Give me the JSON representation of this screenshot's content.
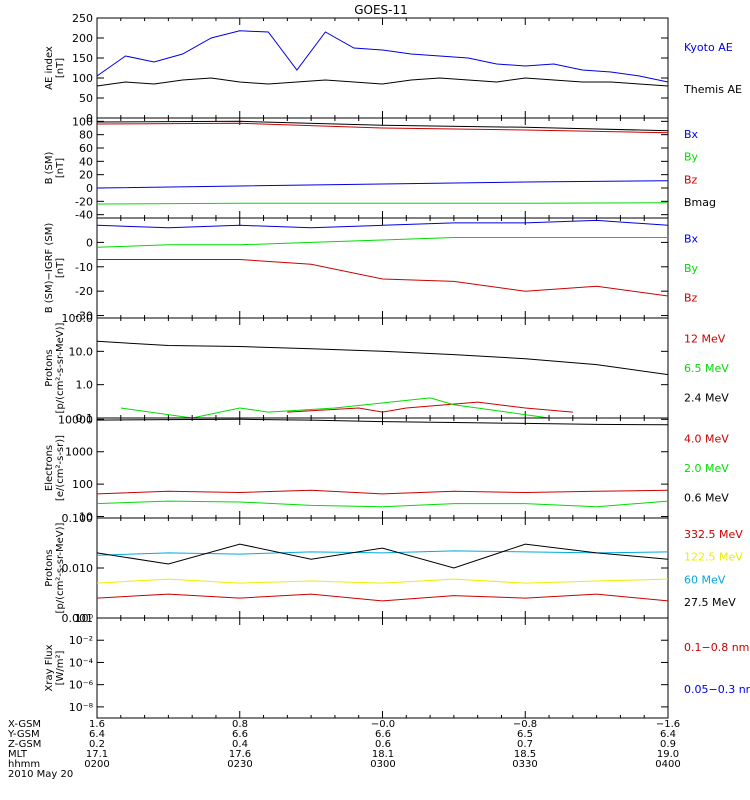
{
  "title": "GOES-11",
  "colors": {
    "blue": "#0000e0",
    "green": "#00dd00",
    "red": "#cc0000",
    "black": "#000000",
    "cyan": "#00aadd",
    "yellow": "#eeee00"
  },
  "x_range": [
    "02:00",
    "04:00"
  ],
  "x_tick_labels": [
    "0200",
    "0230",
    "0300",
    "0330",
    "0400"
  ],
  "orbit_table": {
    "rows": [
      {
        "label": "X-GSM",
        "values": [
          "1.6",
          "0.8",
          "−0.0",
          "−0.8",
          "−1.6"
        ]
      },
      {
        "label": "Y-GSM",
        "values": [
          "6.4",
          "6.6",
          "6.6",
          "6.5",
          "6.4"
        ]
      },
      {
        "label": "Z-GSM",
        "values": [
          "0.2",
          "0.4",
          "0.6",
          "0.7",
          "0.9"
        ]
      },
      {
        "label": "MLT",
        "values": [
          "17.1",
          "17.6",
          "18.1",
          "18.5",
          "19.0"
        ]
      },
      {
        "label": "hhmm",
        "values": [
          "0200",
          "0230",
          "0300",
          "0330",
          "0400"
        ]
      }
    ],
    "date": "2010 May 20"
  },
  "chart_data": [
    {
      "type": "line",
      "ylabel": [
        "AE index",
        "[nT]"
      ],
      "ylim": [
        0,
        250
      ],
      "yticks": [
        0,
        50,
        100,
        150,
        200,
        250
      ],
      "series": [
        {
          "name": "Kyoto AE",
          "color": "#0000e0",
          "x": [
            "02:00",
            "02:06",
            "02:12",
            "02:18",
            "02:24",
            "02:30",
            "02:36",
            "02:42",
            "02:48",
            "02:54",
            "03:00",
            "03:06",
            "03:12",
            "03:18",
            "03:24",
            "03:30",
            "03:36",
            "03:42",
            "03:48",
            "03:54",
            "04:00"
          ],
          "values": [
            105,
            155,
            140,
            160,
            200,
            218,
            215,
            120,
            215,
            175,
            170,
            160,
            155,
            150,
            135,
            130,
            135,
            120,
            115,
            105,
            90
          ]
        },
        {
          "name": "Themis AE",
          "color": "#000000",
          "x": [
            "02:00",
            "02:06",
            "02:12",
            "02:18",
            "02:24",
            "02:30",
            "02:36",
            "02:42",
            "02:48",
            "02:54",
            "03:00",
            "03:06",
            "03:12",
            "03:18",
            "03:24",
            "03:30",
            "03:36",
            "03:42",
            "03:48",
            "03:54",
            "04:00"
          ],
          "values": [
            80,
            90,
            85,
            95,
            100,
            90,
            85,
            90,
            95,
            90,
            85,
            95,
            100,
            95,
            90,
            100,
            95,
            90,
            90,
            85,
            80
          ]
        }
      ]
    },
    {
      "type": "line",
      "ylabel": [
        "B (SM)",
        "[nT]"
      ],
      "ylim": [
        -45,
        105
      ],
      "yticks": [
        -40,
        -20,
        0,
        20,
        40,
        60,
        80,
        100
      ],
      "series": [
        {
          "name": "Bx",
          "color": "#0000e0",
          "x": [
            "02:00",
            "02:30",
            "03:00",
            "03:30",
            "04:00"
          ],
          "values": [
            0,
            3,
            6,
            9,
            11
          ]
        },
        {
          "name": "By",
          "color": "#00dd00",
          "x": [
            "02:00",
            "02:30",
            "03:00",
            "03:30",
            "04:00"
          ],
          "values": [
            -24,
            -23,
            -23,
            -23,
            -22
          ]
        },
        {
          "name": "Bz",
          "color": "#cc0000",
          "x": [
            "02:00",
            "02:30",
            "03:00",
            "03:30",
            "04:00"
          ],
          "values": [
            96,
            97,
            90,
            87,
            83
          ]
        },
        {
          "name": "Bmag",
          "color": "#000000",
          "x": [
            "02:00",
            "02:30",
            "03:00",
            "03:30",
            "04:00"
          ],
          "values": [
            99,
            100,
            94,
            91,
            86
          ]
        }
      ]
    },
    {
      "type": "line",
      "ylabel": [
        "B (SM)−IGRF (SM)",
        "[nT]"
      ],
      "ylim": [
        -31,
        10
      ],
      "yticks": [
        -30,
        -20,
        -10,
        0
      ],
      "series": [
        {
          "name": "Bx",
          "color": "#0000e0",
          "x": [
            "02:00",
            "02:15",
            "02:30",
            "02:45",
            "03:00",
            "03:15",
            "03:30",
            "03:45",
            "04:00"
          ],
          "values": [
            7,
            6,
            7,
            6,
            7,
            8,
            8,
            9,
            7
          ]
        },
        {
          "name": "By",
          "color": "#00dd00",
          "x": [
            "02:00",
            "02:15",
            "02:30",
            "02:45",
            "03:00",
            "03:15",
            "03:30",
            "03:45",
            "04:00"
          ],
          "values": [
            -2,
            -1,
            -1,
            0,
            1,
            2,
            2,
            2,
            2
          ]
        },
        {
          "name": "Bz",
          "color": "#cc0000",
          "x": [
            "02:00",
            "02:15",
            "02:30",
            "02:45",
            "03:00",
            "03:15",
            "03:30",
            "03:45",
            "04:00"
          ],
          "values": [
            -7,
            -7,
            -7,
            -9,
            -15,
            -16,
            -20,
            -18,
            -22
          ]
        }
      ]
    },
    {
      "type": "line",
      "scale": "log",
      "ylabel": [
        "Protons",
        "[p/(cm²-s-sr-MeV)]"
      ],
      "ylim": [
        0.1,
        100
      ],
      "yticks": [
        0.1,
        1.0,
        10.0,
        100.0
      ],
      "ytick_labels": [
        "0.1",
        "1.0",
        "10.0",
        "100.0"
      ],
      "series": [
        {
          "name": "12 MeV",
          "color": "#cc0000",
          "x": [
            "02:40",
            "02:55",
            "03:00",
            "03:05",
            "03:20",
            "03:30",
            "03:40"
          ],
          "values": [
            0.15,
            0.2,
            0.15,
            0.2,
            0.3,
            0.2,
            0.15
          ]
        },
        {
          "name": "6.5 MeV",
          "color": "#00dd00",
          "x": [
            "02:05",
            "02:20",
            "02:30",
            "02:36",
            "02:50",
            "03:10",
            "03:15",
            "03:35"
          ],
          "values": [
            0.2,
            0.1,
            0.2,
            0.15,
            0.2,
            0.4,
            0.25,
            0.1
          ]
        },
        {
          "name": "2.4 MeV",
          "color": "#000000",
          "x": [
            "02:00",
            "02:15",
            "02:30",
            "02:45",
            "03:00",
            "03:15",
            "03:30",
            "03:45",
            "04:00"
          ],
          "values": [
            20,
            15,
            14,
            12,
            10,
            8,
            6,
            4,
            2
          ]
        }
      ]
    },
    {
      "type": "line",
      "scale": "log",
      "ylabel": [
        "Electrons",
        "[e/(cm²-s-sr)]"
      ],
      "ylim": [
        9,
        11000
      ],
      "yticks": [
        10,
        100,
        1000,
        10000
      ],
      "ytick_labels": [
        "10",
        "100",
        "1000",
        "10000"
      ],
      "series": [
        {
          "name": "4.0 MeV",
          "color": "#cc0000",
          "x": [
            "02:00",
            "02:15",
            "02:30",
            "02:45",
            "03:00",
            "03:15",
            "03:30",
            "03:45",
            "04:00"
          ],
          "values": [
            50,
            60,
            55,
            65,
            50,
            60,
            55,
            60,
            65
          ]
        },
        {
          "name": "2.0 MeV",
          "color": "#00dd00",
          "x": [
            "02:00",
            "02:15",
            "02:30",
            "02:45",
            "03:00",
            "03:15",
            "03:30",
            "03:45",
            "04:00"
          ],
          "values": [
            25,
            30,
            28,
            22,
            20,
            25,
            25,
            20,
            30
          ]
        },
        {
          "name": "0.6 MeV",
          "color": "#000000",
          "x": [
            "02:00",
            "02:15",
            "02:30",
            "02:45",
            "03:00",
            "03:15",
            "03:30",
            "03:45",
            "04:00"
          ],
          "values": [
            9500,
            9800,
            10000,
            9500,
            8500,
            8000,
            7500,
            7000,
            6800
          ]
        }
      ]
    },
    {
      "type": "line",
      "scale": "log",
      "ylabel": [
        "Protons",
        "[p/(cm²-s-sr-MeV)]"
      ],
      "ylim": [
        0.001,
        0.1
      ],
      "yticks": [
        0.001,
        0.01,
        0.1
      ],
      "ytick_labels": [
        "0.001",
        "0.010",
        "0.100"
      ],
      "series": [
        {
          "name": "332.5 MeV",
          "color": "#cc0000",
          "x": [
            "02:00",
            "02:15",
            "02:30",
            "02:45",
            "03:00",
            "03:15",
            "03:30",
            "03:45",
            "04:00"
          ],
          "values": [
            0.0025,
            0.003,
            0.0025,
            0.003,
            0.0022,
            0.0028,
            0.0025,
            0.003,
            0.0022
          ]
        },
        {
          "name": "122.5 MeV",
          "color": "#eeee00",
          "x": [
            "02:00",
            "02:15",
            "02:30",
            "02:45",
            "03:00",
            "03:15",
            "03:30",
            "03:45",
            "04:00"
          ],
          "values": [
            0.005,
            0.006,
            0.005,
            0.0055,
            0.005,
            0.006,
            0.005,
            0.0055,
            0.006
          ]
        },
        {
          "name": "60 MeV",
          "color": "#00aadd",
          "x": [
            "02:00",
            "02:15",
            "02:30",
            "02:45",
            "03:00",
            "03:15",
            "03:30",
            "03:45",
            "04:00"
          ],
          "values": [
            0.018,
            0.02,
            0.019,
            0.021,
            0.02,
            0.022,
            0.021,
            0.02,
            0.021
          ]
        },
        {
          "name": "27.5 MeV",
          "color": "#000000",
          "x": [
            "02:00",
            "02:15",
            "02:30",
            "02:45",
            "03:00",
            "03:15",
            "03:30",
            "03:45",
            "04:00"
          ],
          "values": [
            0.02,
            0.012,
            0.03,
            0.015,
            0.025,
            0.01,
            0.03,
            0.02,
            0.015
          ]
        }
      ]
    },
    {
      "type": "line",
      "scale": "log",
      "ylabel": [
        "Xray Flux",
        "[W/m²]"
      ],
      "ylim": [
        1e-09,
        1
      ],
      "yticks": [
        1e-08,
        1e-06,
        0.0001,
        0.01,
        1
      ],
      "ytick_labels": [
        "10⁻⁸",
        "10⁻⁶",
        "10⁻⁴",
        "10⁻²",
        "10⁰"
      ],
      "series": [
        {
          "name": "0.1−0.8 nm",
          "color": "#cc0000",
          "x": [],
          "values": []
        },
        {
          "name": "0.05−0.3 nm",
          "color": "#0000e0",
          "x": [],
          "values": []
        }
      ]
    }
  ]
}
